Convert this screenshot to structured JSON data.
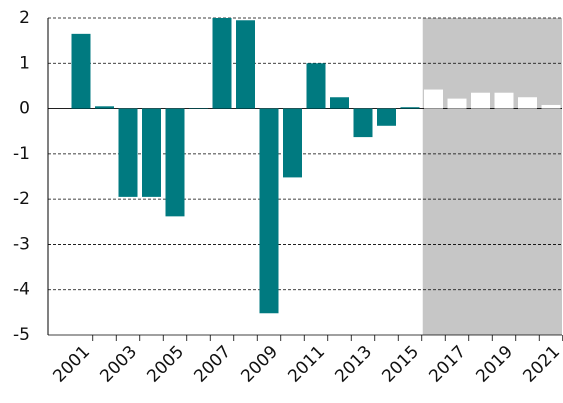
{
  "chart_data": {
    "type": "bar",
    "categories": [
      "2001",
      null,
      "2003",
      null,
      "2005",
      null,
      "2007",
      null,
      "2009",
      null,
      "2011",
      null,
      "2013",
      null,
      "2015",
      null,
      "2017",
      null,
      "2019",
      null,
      "2021"
    ],
    "values": [
      1.65,
      0.05,
      -1.95,
      -1.95,
      -2.38,
      0.01,
      2.0,
      1.95,
      -4.52,
      -1.52,
      1.0,
      0.25,
      -0.63,
      -0.38,
      0.03,
      0.42,
      0.22,
      0.35,
      0.35,
      0.25,
      0.08
    ],
    "colors": [
      "#007a80",
      "#007a80",
      "#007a80",
      "#007a80",
      "#007a80",
      "#007a80",
      "#007a80",
      "#007a80",
      "#007a80",
      "#007a80",
      "#007a80",
      "#007a80",
      "#007a80",
      "#007a80",
      "#007a80",
      "#ffffff",
      "#ffffff",
      "#ffffff",
      "#ffffff",
      "#ffffff",
      "#ffffff"
    ],
    "shade_from_index": 15,
    "shade_color": "#c6c6c6",
    "ylim": [
      -5,
      2
    ],
    "yticks": [
      -5,
      -4,
      -3,
      -2,
      -1,
      0,
      1,
      2
    ],
    "grid": true
  }
}
